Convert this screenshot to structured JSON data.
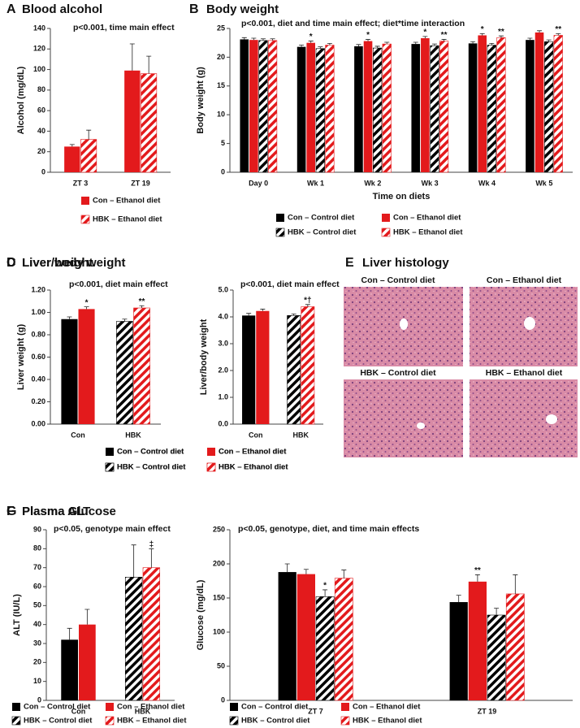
{
  "chart_data": [
    {
      "type": "bar",
      "label": "A",
      "title": "Blood alcohol",
      "annotation": "p<0.001, time main effect",
      "y_label": "Alcohol (mg/dL)",
      "categories": [
        "ZT 3",
        "ZT 19"
      ],
      "ylim": [
        0,
        140
      ],
      "yticks": [
        0,
        20,
        40,
        60,
        80,
        100,
        120,
        140
      ],
      "series": [
        {
          "name": "Con – Ethanol diet",
          "color": "#e31a1c",
          "hatch": false,
          "values": [
            25,
            99
          ],
          "errors": [
            2,
            26
          ]
        },
        {
          "name": "HBK – Ethanol diet",
          "color": "#e31a1c",
          "hatch": true,
          "values": [
            32,
            96
          ],
          "errors": [
            9,
            17
          ]
        }
      ]
    },
    {
      "type": "bar",
      "label": "B",
      "title": "Body weight",
      "annotation": "p<0.001, diet and time main effect; diet*time interaction",
      "y_label": "Body weight (g)",
      "x_label": "Time on diets",
      "categories": [
        "Day 0",
        "Wk 1",
        "Wk 2",
        "Wk 3",
        "Wk 4",
        "Wk 5"
      ],
      "ylim": [
        0,
        25
      ],
      "yticks": [
        0,
        5,
        10,
        15,
        20,
        25
      ],
      "series": [
        {
          "name": "Con – Control diet",
          "color": "#000000",
          "hatch": false,
          "values": [
            23.1,
            21.8,
            21.9,
            22.3,
            22.4,
            23.0
          ],
          "errors": [
            0.3,
            0.3,
            0.3,
            0.3,
            0.3,
            0.3
          ]
        },
        {
          "name": "Con – Ethanol diet",
          "color": "#e31a1c",
          "hatch": false,
          "values": [
            23.0,
            22.5,
            22.8,
            23.3,
            23.8,
            24.3
          ],
          "errors": [
            0.3,
            0.3,
            0.3,
            0.3,
            0.3,
            0.3
          ],
          "markers": [
            null,
            "*",
            "*",
            "*",
            "*",
            null
          ]
        },
        {
          "name": "HBK – Control diet",
          "color": "#000000",
          "hatch": true,
          "values": [
            22.9,
            21.5,
            21.6,
            22.0,
            22.1,
            22.7
          ],
          "errors": [
            0.3,
            0.3,
            0.3,
            0.3,
            0.3,
            0.3
          ]
        },
        {
          "name": "HBK – Ethanol diet",
          "color": "#e31a1c",
          "hatch": true,
          "values": [
            22.9,
            22.1,
            22.3,
            22.8,
            23.4,
            23.8
          ],
          "errors": [
            0.3,
            0.3,
            0.3,
            0.3,
            0.3,
            0.3
          ],
          "markers": [
            null,
            null,
            null,
            "**",
            "**",
            "**"
          ]
        }
      ]
    },
    {
      "type": "bar",
      "label": "C",
      "title": "Liver weight",
      "annotation": "p<0.001, diet main effect",
      "y_label": "Liver weight (g)",
      "categories": [
        "Con",
        "HBK"
      ],
      "ylim": [
        0,
        1.2
      ],
      "yticks": [
        {
          "value": 0,
          "label": "0.00"
        },
        {
          "value": 0.2,
          "label": "0.20"
        },
        {
          "value": 0.4,
          "label": "0.40"
        },
        {
          "value": 0.6,
          "label": "0.60"
        },
        {
          "value": 0.8,
          "label": "0.80"
        },
        {
          "value": 1.0,
          "label": "1.00"
        },
        {
          "value": 1.2,
          "label": "1.20"
        }
      ],
      "series": [
        {
          "name": "Con – Control diet",
          "color": "#000000",
          "hatch": false,
          "values": [
            0.94,
            null
          ],
          "errors": [
            0.02,
            null
          ]
        },
        {
          "name": "Con – Ethanol diet",
          "color": "#e31a1c",
          "hatch": false,
          "values": [
            1.03,
            null
          ],
          "errors": [
            0.02,
            null
          ],
          "markers": [
            "*",
            null
          ]
        },
        {
          "name": "HBK – Control diet",
          "color": "#000000",
          "hatch": true,
          "values": [
            null,
            0.92
          ],
          "errors": [
            null,
            0.02
          ]
        },
        {
          "name": "HBK – Ethanol diet",
          "color": "#e31a1c",
          "hatch": true,
          "values": [
            null,
            1.04
          ],
          "errors": [
            null,
            0.02
          ],
          "markers": [
            null,
            "**"
          ]
        }
      ]
    },
    {
      "type": "bar",
      "label": "D",
      "title": "Liver/body weight",
      "annotation": "p<0.001, diet main effect",
      "y_label": "Liver/body weight",
      "categories": [
        "Con",
        "HBK"
      ],
      "ylim": [
        0,
        5
      ],
      "yticks": [
        {
          "value": 0,
          "label": "0.0"
        },
        {
          "value": 1,
          "label": "1.0"
        },
        {
          "value": 2,
          "label": "2.0"
        },
        {
          "value": 3,
          "label": "3.0"
        },
        {
          "value": 4,
          "label": "4.0"
        },
        {
          "value": 5,
          "label": "5.0"
        }
      ],
      "series": [
        {
          "name": "Con – Control diet",
          "color": "#000000",
          "hatch": false,
          "values": [
            4.05,
            null
          ],
          "errors": [
            0.08,
            null
          ]
        },
        {
          "name": "Con – Ethanol diet",
          "color": "#e31a1c",
          "hatch": false,
          "values": [
            4.22,
            null
          ],
          "errors": [
            0.07,
            null
          ]
        },
        {
          "name": "HBK – Control diet",
          "color": "#000000",
          "hatch": true,
          "values": [
            null,
            4.05
          ],
          "errors": [
            null,
            0.06
          ]
        },
        {
          "name": "HBK – Ethanol diet",
          "color": "#e31a1c",
          "hatch": true,
          "values": [
            null,
            4.38
          ],
          "errors": [
            null,
            0.08
          ],
          "markers": [
            null,
            "*†"
          ]
        }
      ]
    },
    {
      "type": "bar",
      "label": "F",
      "title": "Plasma ALT",
      "annotation": "p<0.05, genotype main effect",
      "y_label": "ALT (IU/L)",
      "categories": [
        "Con",
        "HBK"
      ],
      "ylim": [
        0,
        90
      ],
      "yticks": [
        0,
        10,
        20,
        30,
        40,
        50,
        60,
        70,
        80,
        90
      ],
      "series": [
        {
          "name": "Con – Control diet",
          "color": "#000000",
          "hatch": false,
          "values": [
            32,
            null
          ],
          "errors": [
            6,
            null
          ]
        },
        {
          "name": "Con – Ethanol diet",
          "color": "#e31a1c",
          "hatch": false,
          "values": [
            40,
            null
          ],
          "errors": [
            8,
            null
          ]
        },
        {
          "name": "HBK – Control diet",
          "color": "#000000",
          "hatch": true,
          "values": [
            null,
            65
          ],
          "errors": [
            null,
            17
          ]
        },
        {
          "name": "HBK – Ethanol diet",
          "color": "#e31a1c",
          "hatch": true,
          "values": [
            null,
            70
          ],
          "errors": [
            null,
            10
          ],
          "markers": [
            null,
            "‡"
          ]
        }
      ]
    },
    {
      "type": "bar",
      "label": "G",
      "title": "Plasma Glucose",
      "annotation": "p<0.05, genotype, diet, and  time main effects",
      "y_label": "Glucose (mg/dL)",
      "categories": [
        "ZT 7",
        "ZT 19"
      ],
      "ylim": [
        0,
        250
      ],
      "yticks": [
        0,
        50,
        100,
        150,
        200,
        250
      ],
      "series": [
        {
          "name": "Con – Control diet",
          "color": "#000000",
          "hatch": false,
          "values": [
            188,
            144
          ],
          "errors": [
            12,
            10
          ]
        },
        {
          "name": "Con – Ethanol diet",
          "color": "#e31a1c",
          "hatch": false,
          "values": [
            185,
            174
          ],
          "errors": [
            7,
            10
          ],
          "markers": [
            null,
            "**"
          ]
        },
        {
          "name": "HBK – Control diet",
          "color": "#000000",
          "hatch": true,
          "values": [
            152,
            125
          ],
          "errors": [
            10,
            10
          ],
          "markers": [
            "*",
            null
          ]
        },
        {
          "name": "HBK – Ethanol diet",
          "color": "#e31a1c",
          "hatch": true,
          "values": [
            179,
            156
          ],
          "errors": [
            12,
            28
          ]
        }
      ]
    }
  ],
  "histology": {
    "label": "E",
    "title": "Liver histology",
    "panels": [
      "Con – Control diet",
      "Con – Ethanol diet",
      "HBK – Control diet",
      "HBK – Ethanol diet"
    ]
  }
}
